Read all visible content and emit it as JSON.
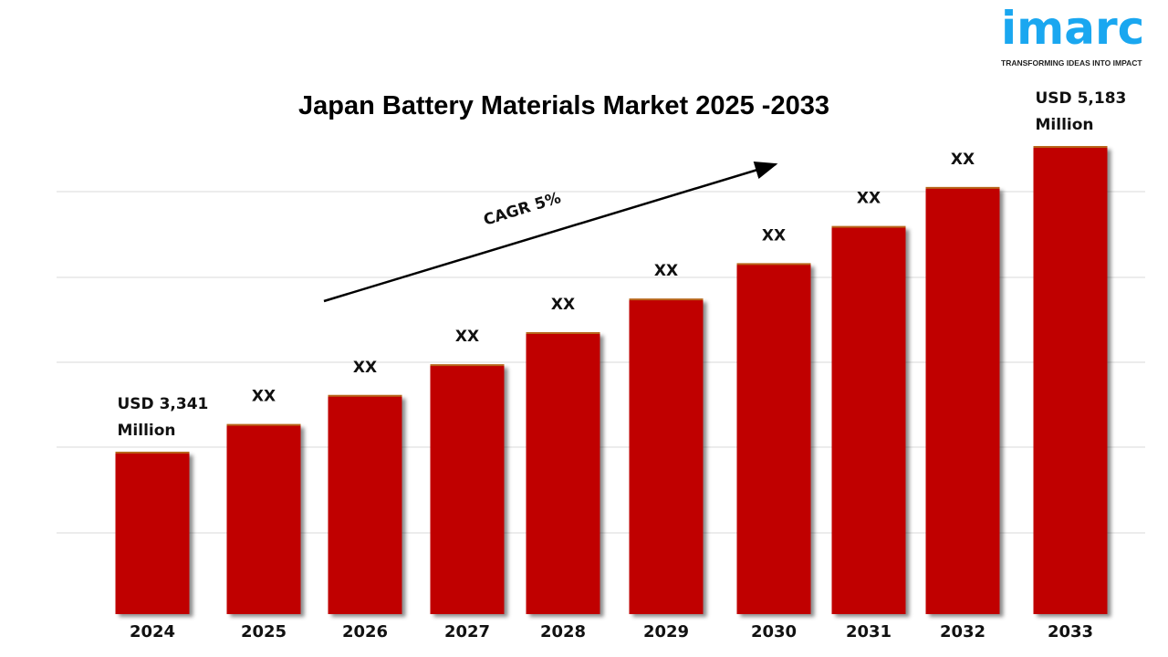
{
  "logo": {
    "text": "imarc",
    "tagline": "TRANSFORMING IDEAS INTO IMPACT",
    "color": "#1aa7f0"
  },
  "chart_data": {
    "type": "bar",
    "title": "Japan Battery Materials Market 2025 -2033",
    "categories": [
      "2024",
      "2025",
      "2026",
      "2027",
      "2028",
      "2029",
      "2030",
      "2031",
      "2032",
      "2033"
    ],
    "values": [
      3341,
      3508,
      3683,
      3868,
      4061,
      4264,
      4477,
      4701,
      4936,
      5183
    ],
    "unit": "USD Million",
    "data_labels": [
      [
        "USD 3,341",
        "Million"
      ],
      [
        "XX"
      ],
      [
        "XX"
      ],
      [
        "XX"
      ],
      [
        "XX"
      ],
      [
        "XX"
      ],
      [
        "XX"
      ],
      [
        "XX"
      ],
      [
        "XX"
      ],
      [
        "USD 5,183",
        "Million"
      ]
    ],
    "annotation": "CAGR 5%",
    "bar_color": "#c00000",
    "grid": true,
    "xlabel": "",
    "ylabel": ""
  }
}
